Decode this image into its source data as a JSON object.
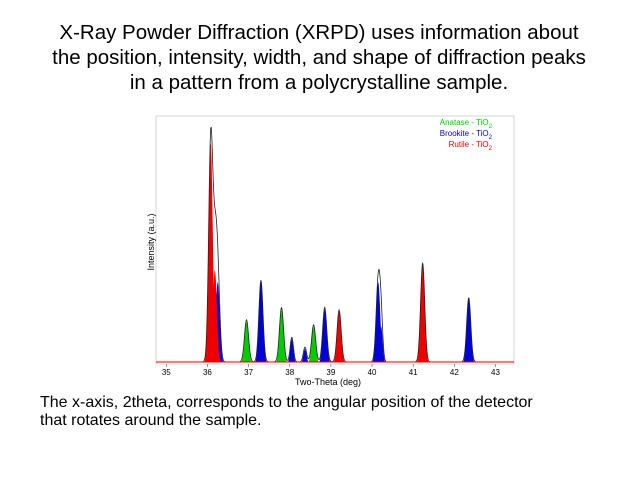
{
  "slide": {
    "title_lines": [
      "X-Ray Powder Diffraction (XRPD) uses information about",
      "the position, intensity, width, and shape of diffraction peaks",
      "in a pattern from a polycrystalline sample."
    ],
    "caption_lines": [
      "The x-axis, 2theta, corresponds to the angular position of the detector",
      "that rotates around the sample."
    ]
  },
  "colors": {
    "anatase": "#00cc00",
    "brookite": "#0000dd",
    "rutile": "#ee0000",
    "measured": "#222222"
  },
  "chart_data": {
    "type": "area",
    "title": "",
    "xlabel": "Two-Theta (deg)",
    "ylabel": "Intensity (a.u.)",
    "xlim": [
      34.75,
      43.45
    ],
    "ylim": [
      0,
      100
    ],
    "xticks": [
      35,
      36,
      37,
      38,
      39,
      40,
      41,
      42,
      43
    ],
    "grid": false,
    "legend_position": "top-right",
    "series": [
      {
        "name": "Anatase - TiO2",
        "legend_text": "Anatase - TiO",
        "legend_sub": "2",
        "peaks": [
          {
            "center": 36.95,
            "height": 17,
            "width": 0.05
          },
          {
            "center": 37.8,
            "height": 22,
            "width": 0.05
          },
          {
            "center": 38.58,
            "height": 15,
            "width": 0.05
          }
        ]
      },
      {
        "name": "Brookite - TiO2",
        "legend_text": "Brookite - TiO",
        "legend_sub": "2",
        "peaks": [
          {
            "center": 36.25,
            "height": 33,
            "width": 0.05
          },
          {
            "center": 37.3,
            "height": 33,
            "width": 0.05
          },
          {
            "center": 38.05,
            "height": 10,
            "width": 0.04
          },
          {
            "center": 38.37,
            "height": 6,
            "width": 0.04
          },
          {
            "center": 38.85,
            "height": 22,
            "width": 0.05
          },
          {
            "center": 40.15,
            "height": 33,
            "width": 0.05
          },
          {
            "center": 40.22,
            "height": 15,
            "width": 0.04
          },
          {
            "center": 42.35,
            "height": 26,
            "width": 0.05
          }
        ]
      },
      {
        "name": "Rutile - TiO2",
        "legend_text": "Rutile - TiO",
        "legend_sub": "2",
        "peaks": [
          {
            "center": 36.08,
            "height": 89,
            "width": 0.05
          },
          {
            "center": 36.18,
            "height": 38,
            "width": 0.05
          },
          {
            "center": 39.2,
            "height": 21,
            "width": 0.05
          },
          {
            "center": 41.23,
            "height": 40,
            "width": 0.05
          }
        ]
      }
    ]
  }
}
